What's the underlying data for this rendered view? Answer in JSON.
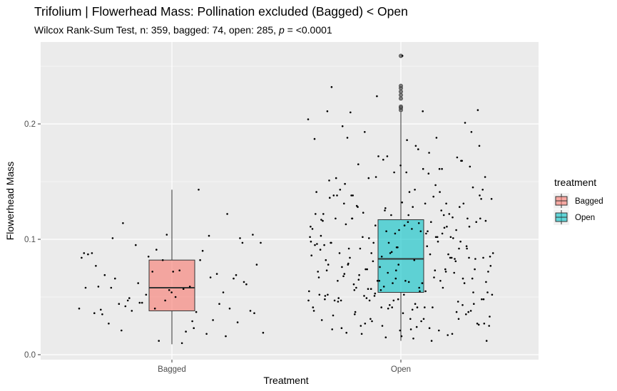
{
  "chart_data": {
    "type": "box",
    "title": "Trifolium | Flowerhead Mass: Pollination excluded (Bagged) < Open",
    "subtitle_prefix": "Wilcox Rank-Sum Test, n: 359, bagged: 74, open: 285, ",
    "subtitle_p": "p",
    "subtitle_suffix": " = <0.0001",
    "xlabel": "Treatment",
    "ylabel": "Flowerhead Mass",
    "ylim": [
      -0.005,
      0.265
    ],
    "yticks": [
      0.0,
      0.1,
      0.2
    ],
    "ytick_labels": [
      "0.0",
      "0.1",
      "0.2"
    ],
    "categories": [
      "Bagged",
      "Open"
    ],
    "legend": {
      "title": "treatment",
      "position": "right",
      "items": [
        {
          "label": "Bagged",
          "color": "#F8766D"
        },
        {
          "label": "Open",
          "color": "#00BFC4"
        }
      ]
    },
    "boxes": [
      {
        "name": "Bagged",
        "color": "#F8766D",
        "whisker_low": 0.009,
        "q1": 0.038,
        "median": 0.058,
        "q3": 0.082,
        "whisker_high": 0.143,
        "outliers": []
      },
      {
        "name": "Open",
        "color": "#00BFC4",
        "whisker_low": 0.012,
        "q1": 0.054,
        "median": 0.083,
        "q3": 0.117,
        "whisker_high": 0.21,
        "outliers": [
          0.212,
          0.214,
          0.215,
          0.222,
          0.225,
          0.228,
          0.231,
          0.233,
          0.259
        ]
      }
    ],
    "bagged_points": [
      0.04,
      0.023,
      0.114,
      0.028,
      0.104,
      0.077,
      0.067,
      0.045,
      0.036,
      0.057,
      0.101,
      0.122,
      0.091,
      0.058,
      0.082,
      0.049,
      0.063,
      0.072,
      0.035,
      0.07,
      0.052,
      0.097,
      0.059,
      0.044,
      0.066,
      0.082,
      0.088,
      0.018,
      0.095,
      0.038,
      0.073,
      0.027,
      0.054,
      0.072,
      0.084,
      0.037,
      0.042,
      0.101,
      0.056,
      0.059,
      0.03,
      0.045,
      0.078,
      0.02,
      0.066,
      0.04,
      0.012,
      0.087,
      0.09,
      0.038,
      0.061,
      0.05,
      0.069,
      0.044,
      0.085,
      0.019,
      0.029,
      0.021,
      0.069,
      0.047,
      0.036,
      0.103,
      0.062,
      0.104,
      0.01,
      0.058,
      0.016,
      0.04,
      0.088,
      0.143,
      0.047,
      0.097,
      0.054,
      0.039
    ],
    "open_points": [
      0.204,
      0.211,
      0.118,
      0.094,
      0.066,
      0.048,
      0.161,
      0.153,
      0.084,
      0.039,
      0.023,
      0.108,
      0.127,
      0.187,
      0.175,
      0.165,
      0.145,
      0.132,
      0.097,
      0.072,
      0.053,
      0.033,
      0.114,
      0.078,
      0.043,
      0.089,
      0.103,
      0.147,
      0.193,
      0.181,
      0.121,
      0.064,
      0.018,
      0.041,
      0.111,
      0.131,
      0.056,
      0.084,
      0.048,
      0.211,
      0.161,
      0.057,
      0.116,
      0.143,
      0.131,
      0.031,
      0.071,
      0.096,
      0.012,
      0.025,
      0.083,
      0.112,
      0.138,
      0.087,
      0.064,
      0.052,
      0.029,
      0.21,
      0.201,
      0.158,
      0.122,
      0.098,
      0.074,
      0.048,
      0.022,
      0.143,
      0.083,
      0.059,
      0.041,
      0.107,
      0.129,
      0.193,
      0.164,
      0.136,
      0.11,
      0.097,
      0.072,
      0.041,
      0.019,
      0.168,
      0.088,
      0.052,
      0.067,
      0.123,
      0.212,
      0.186,
      0.153,
      0.102,
      0.076,
      0.055,
      0.031,
      0.138,
      0.118,
      0.093,
      0.082,
      0.064,
      0.047,
      0.027,
      0.014,
      0.198,
      0.171,
      0.107,
      0.122,
      0.087,
      0.069,
      0.044,
      0.036,
      0.022,
      0.111,
      0.154,
      0.077,
      0.055,
      0.092,
      0.131,
      0.062,
      0.03,
      0.188,
      0.074,
      0.118,
      0.141,
      0.049,
      0.101,
      0.025,
      0.086,
      0.105,
      0.037,
      0.163,
      0.108,
      0.078,
      0.058,
      0.029,
      0.012,
      0.181,
      0.148,
      0.128,
      0.097,
      0.072,
      0.041,
      0.018,
      0.115,
      0.064,
      0.047,
      0.122,
      0.172,
      0.088,
      0.062,
      0.138,
      0.035,
      0.105,
      0.095,
      0.021,
      0.057,
      0.143,
      0.109,
      0.047,
      0.081,
      0.125,
      0.038,
      0.157,
      0.128,
      0.066,
      0.016,
      0.097,
      0.074,
      0.051,
      0.025,
      0.178,
      0.188,
      0.168,
      0.121,
      0.091,
      0.073,
      0.051,
      0.026,
      0.115,
      0.138,
      0.084,
      0.056,
      0.102,
      0.041,
      0.061,
      0.037,
      0.093,
      0.073,
      0.125,
      0.031,
      0.154,
      0.082,
      0.068,
      0.046,
      0.172,
      0.141,
      0.115,
      0.092,
      0.074,
      0.052,
      0.034,
      0.017,
      0.224,
      0.135,
      0.107,
      0.084,
      0.062,
      0.047,
      0.116,
      0.102,
      0.049,
      0.135,
      0.031,
      0.088,
      0.071,
      0.169,
      0.109,
      0.094,
      0.058,
      0.038,
      0.021,
      0.151,
      0.121,
      0.081,
      0.054,
      0.024,
      0.113,
      0.098,
      0.043,
      0.067,
      0.137,
      0.102,
      0.027,
      0.158,
      0.118,
      0.084,
      0.064,
      0.047,
      0.161,
      0.118,
      0.092,
      0.073,
      0.051,
      0.141,
      0.101,
      0.048,
      0.128,
      0.076,
      0.037,
      0.015,
      0.095,
      0.023,
      0.065,
      0.054,
      0.259,
      0.232,
      0.131,
      0.112,
      0.085,
      0.058,
      0.079,
      0.066,
      0.041,
      0.117,
      0.102,
      0.027,
      0.138,
      0.063,
      0.046,
      0.119,
      0.085,
      0.098,
      0.055,
      0.035,
      0.111,
      0.078,
      0.052,
      0.105,
      0.088,
      0.063,
      0.044,
      0.07,
      0.092,
      0.04
    ]
  }
}
